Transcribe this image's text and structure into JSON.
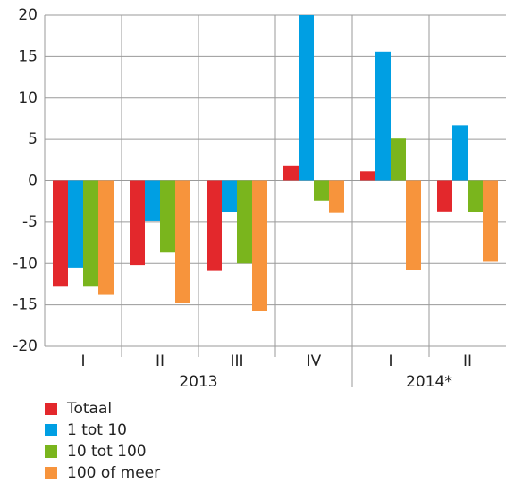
{
  "chart_data": {
    "type": "bar",
    "category_groups": [
      {
        "label": "2013",
        "categories": [
          "I",
          "II",
          "III",
          "IV"
        ]
      },
      {
        "label": "2014*",
        "categories": [
          "I",
          "II"
        ]
      }
    ],
    "series": [
      {
        "name": "Totaal",
        "color": "#e3282c",
        "values": [
          -12.7,
          -10.2,
          -10.9,
          1.8,
          1.1,
          -3.7
        ]
      },
      {
        "name": "1 tot 10",
        "color": "#009fe3",
        "values": [
          -10.5,
          -4.9,
          -3.8,
          20,
          15.6,
          6.7
        ]
      },
      {
        "name": "10 tot 100",
        "color": "#7ab51d",
        "values": [
          -12.7,
          -8.6,
          -10.0,
          -2.4,
          5.1,
          -3.8
        ]
      },
      {
        "name": "100 of meer",
        "color": "#f7943c",
        "values": [
          -13.7,
          -14.8,
          -15.7,
          -3.9,
          -10.8,
          -9.7
        ]
      }
    ],
    "ylim": [
      -20,
      20
    ],
    "yticks": [
      -20,
      -15,
      -10,
      -5,
      0,
      5,
      10,
      15,
      20
    ],
    "grid": true,
    "legend": "bottom"
  }
}
